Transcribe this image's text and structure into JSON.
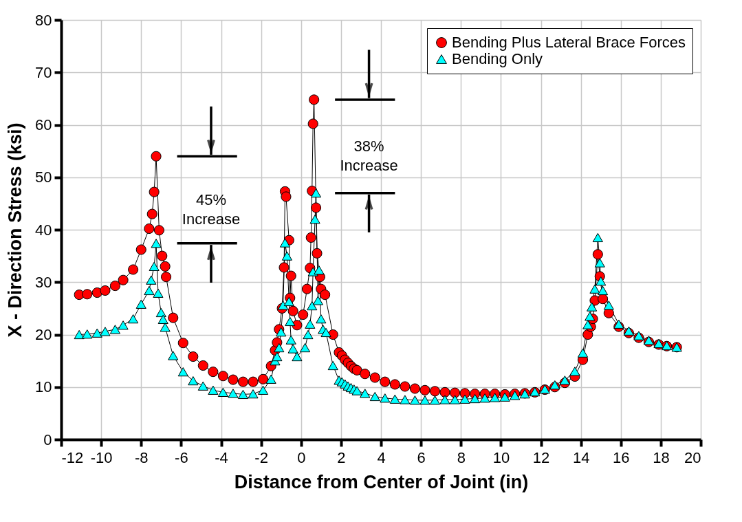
{
  "chart_data": {
    "type": "line",
    "xlabel": "Distance from Center of Joint  (in)",
    "ylabel": "X - Direction Stress  (ksi)",
    "xlim": [
      -12,
      20
    ],
    "xticks": [
      -12,
      -10,
      -8,
      -6,
      -4,
      -2,
      0,
      2,
      4,
      6,
      8,
      10,
      12,
      14,
      16,
      18,
      20
    ],
    "ylim": [
      0,
      80
    ],
    "yticks": [
      0,
      10,
      20,
      30,
      40,
      50,
      60,
      70,
      80
    ],
    "grid": true,
    "legend": "top right",
    "line_style": "solid",
    "series": [
      {
        "name": "Bending Plus Lateral Brace Forces",
        "color": "#ff0000",
        "marker": "circle",
        "x": [
          -11.1,
          -10.7,
          -10.2,
          -9.8,
          -9.3,
          -8.9,
          -8.4,
          -8.0,
          -7.6,
          -7.45,
          -7.35,
          -7.25,
          -7.1,
          -6.95,
          -6.8,
          -6.75,
          -6.4,
          -5.9,
          -5.4,
          -4.9,
          -4.4,
          -3.9,
          -3.4,
          -2.9,
          -2.4,
          -1.9,
          -1.5,
          -1.3,
          -1.2,
          -1.1,
          -0.95,
          -0.85,
          -0.8,
          -0.75,
          -0.6,
          -0.55,
          -0.5,
          -0.4,
          -0.2,
          0.1,
          0.3,
          0.45,
          0.5,
          0.55,
          0.6,
          0.65,
          0.75,
          0.8,
          0.95,
          1.0,
          1.2,
          1.6,
          1.9,
          2.05,
          2.2,
          2.35,
          2.5,
          2.65,
          2.8,
          3.2,
          3.7,
          4.2,
          4.7,
          5.2,
          5.7,
          6.2,
          6.7,
          7.2,
          7.7,
          8.2,
          8.7,
          9.2,
          9.7,
          10.2,
          10.7,
          11.2,
          11.7,
          12.2,
          12.7,
          13.2,
          13.7,
          14.1,
          14.35,
          14.5,
          14.6,
          14.7,
          14.85,
          14.95,
          15.1,
          15.4,
          15.9,
          16.4,
          16.9,
          17.4,
          17.9,
          18.3,
          18.8
        ],
        "values": [
          27.6,
          27.7,
          28.0,
          28.4,
          29.3,
          30.4,
          32.4,
          36.2,
          40.2,
          43.0,
          47.2,
          54.0,
          39.9,
          35.0,
          33.0,
          31.0,
          23.2,
          18.4,
          15.8,
          14.1,
          12.9,
          12.1,
          11.4,
          11.0,
          11.0,
          11.5,
          14.0,
          17.0,
          18.5,
          21.0,
          25.0,
          32.8,
          47.3,
          46.3,
          38.0,
          27.0,
          31.2,
          24.5,
          21.8,
          23.8,
          28.7,
          32.7,
          38.5,
          47.4,
          60.2,
          64.8,
          44.2,
          35.5,
          31.0,
          28.7,
          27.6,
          20.0,
          16.6,
          16.0,
          15.2,
          14.6,
          14.0,
          13.5,
          13.2,
          12.5,
          11.8,
          11.0,
          10.5,
          10.1,
          9.7,
          9.4,
          9.2,
          9.0,
          8.9,
          8.8,
          8.7,
          8.7,
          8.7,
          8.6,
          8.7,
          8.8,
          9.0,
          9.5,
          10.0,
          10.8,
          12.0,
          15.2,
          20.0,
          21.5,
          23.0,
          26.5,
          35.3,
          31.1,
          26.8,
          24.1,
          21.5,
          20.3,
          19.4,
          18.6,
          18.1,
          17.8,
          17.6
        ]
      },
      {
        "name": "Bending Only",
        "color": "#00ffff",
        "marker": "triangle",
        "x": [
          -11.1,
          -10.7,
          -10.2,
          -9.8,
          -9.3,
          -8.9,
          -8.4,
          -8.0,
          -7.6,
          -7.5,
          -7.35,
          -7.25,
          -7.15,
          -7.0,
          -6.9,
          -6.8,
          -6.4,
          -5.9,
          -5.4,
          -4.9,
          -4.4,
          -3.9,
          -3.4,
          -2.9,
          -2.4,
          -1.9,
          -1.5,
          -1.3,
          -1.2,
          -1.1,
          -1.0,
          -0.9,
          -0.8,
          -0.7,
          -0.6,
          -0.55,
          -0.5,
          -0.4,
          -0.2,
          0.2,
          0.35,
          0.45,
          0.55,
          0.6,
          0.7,
          0.75,
          0.85,
          0.9,
          1.0,
          1.1,
          1.25,
          1.6,
          1.9,
          2.05,
          2.2,
          2.35,
          2.5,
          2.65,
          2.8,
          3.2,
          3.7,
          4.2,
          4.7,
          5.2,
          5.7,
          6.2,
          6.7,
          7.2,
          7.7,
          8.2,
          8.7,
          9.2,
          9.7,
          10.2,
          10.7,
          11.2,
          11.7,
          12.2,
          12.7,
          13.2,
          13.7,
          14.1,
          14.35,
          14.45,
          14.55,
          14.7,
          14.85,
          14.95,
          15.0,
          15.1,
          15.4,
          15.9,
          16.4,
          16.9,
          17.4,
          17.9,
          18.3,
          18.8
        ],
        "values": [
          20.0,
          20.1,
          20.3,
          20.6,
          21.0,
          21.8,
          23.0,
          25.8,
          28.4,
          30.4,
          33.0,
          37.4,
          27.9,
          24.2,
          22.9,
          21.4,
          16.0,
          12.9,
          11.2,
          10.2,
          9.4,
          9.0,
          8.8,
          8.6,
          8.7,
          9.4,
          11.5,
          15.0,
          15.8,
          17.5,
          20.5,
          25.6,
          37.5,
          35.0,
          26.3,
          22.5,
          19.0,
          17.3,
          15.8,
          17.5,
          20.0,
          22.0,
          25.5,
          32.0,
          42.0,
          47.0,
          26.5,
          32.3,
          23.0,
          21.0,
          20.4,
          14.1,
          11.3,
          11.0,
          10.6,
          10.2,
          9.9,
          9.6,
          9.3,
          8.8,
          8.2,
          7.9,
          7.7,
          7.6,
          7.5,
          7.5,
          7.5,
          7.6,
          7.6,
          7.7,
          7.8,
          7.9,
          8.0,
          8.1,
          8.4,
          8.7,
          9.1,
          9.6,
          10.4,
          11.3,
          13.0,
          16.5,
          21.9,
          23.5,
          25.3,
          28.7,
          38.5,
          33.7,
          30.2,
          28.4,
          25.6,
          22.0,
          20.7,
          19.8,
          18.9,
          18.3,
          17.9,
          17.6
        ]
      }
    ],
    "annotations": [
      "45% Increase",
      "38% Increase"
    ]
  }
}
